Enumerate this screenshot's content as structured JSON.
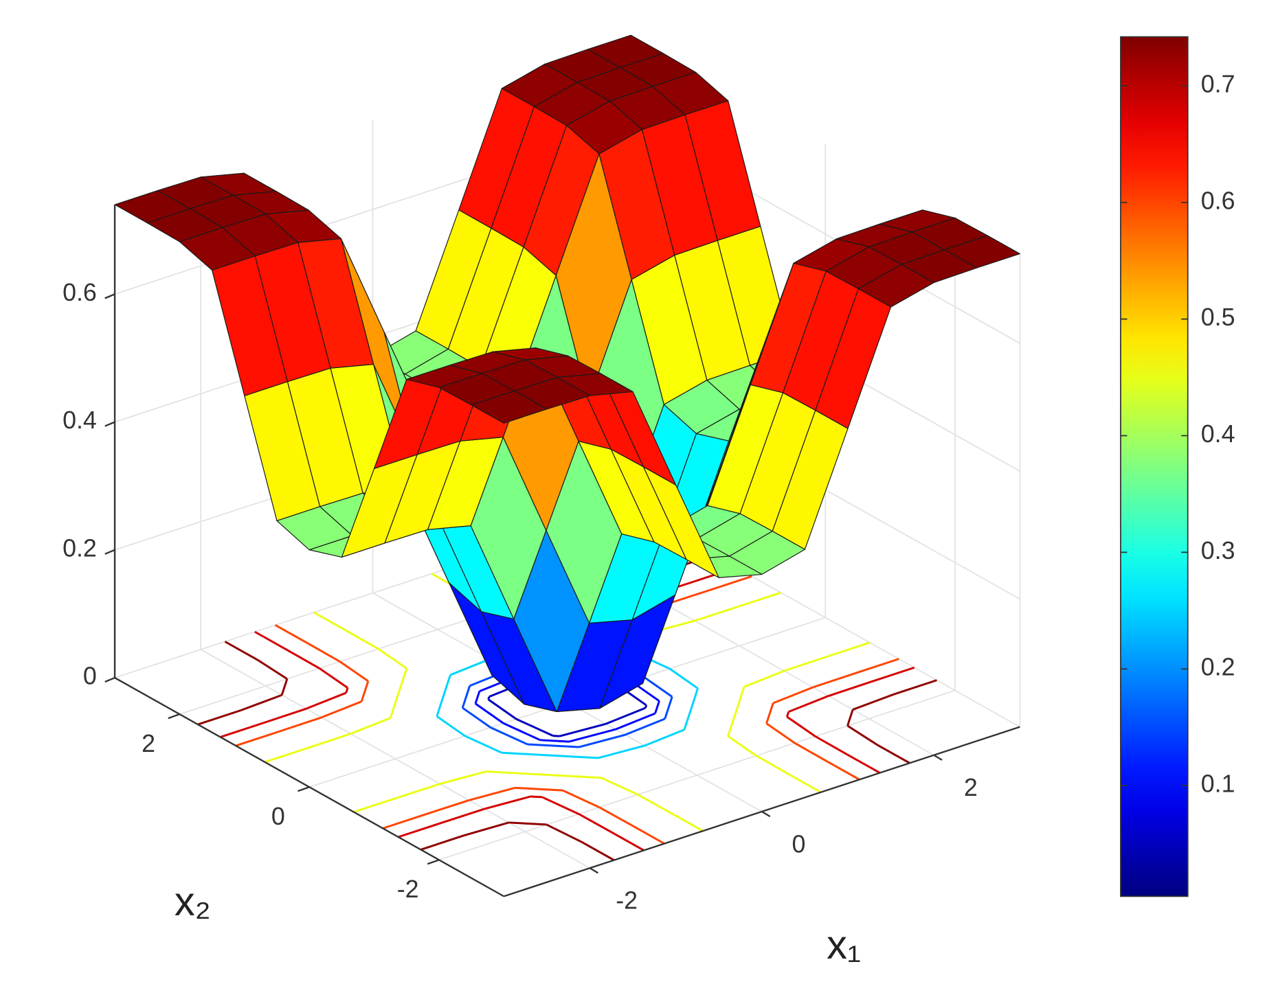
{
  "chart_data": {
    "type": "surface",
    "x": [
      -3,
      -2.5,
      -2,
      -1.5,
      -1,
      -0.5,
      0,
      0.5,
      1,
      1.5,
      2,
      2.5,
      3
    ],
    "y": [
      -3,
      -2.5,
      -2,
      -1.5,
      -1,
      -0.5,
      0,
      0.5,
      1,
      1.5,
      2,
      2.5,
      3
    ],
    "z": [
      [
        0.74,
        0.74,
        0.739,
        0.723,
        0.555,
        0.388,
        0.371,
        0.388,
        0.555,
        0.723,
        0.739,
        0.74,
        0.74
      ],
      [
        0.74,
        0.74,
        0.739,
        0.723,
        0.555,
        0.388,
        0.371,
        0.388,
        0.555,
        0.723,
        0.739,
        0.74,
        0.74
      ],
      [
        0.739,
        0.739,
        0.738,
        0.722,
        0.554,
        0.387,
        0.37,
        0.387,
        0.554,
        0.722,
        0.738,
        0.739,
        0.739
      ],
      [
        0.723,
        0.723,
        0.722,
        0.706,
        0.538,
        0.371,
        0.354,
        0.371,
        0.538,
        0.706,
        0.722,
        0.723,
        0.723
      ],
      [
        0.555,
        0.555,
        0.554,
        0.538,
        0.37,
        0.203,
        0.186,
        0.203,
        0.37,
        0.538,
        0.554,
        0.555,
        0.555
      ],
      [
        0.388,
        0.388,
        0.387,
        0.371,
        0.203,
        0.036,
        0.019,
        0.036,
        0.203,
        0.371,
        0.387,
        0.388,
        0.388
      ],
      [
        0.371,
        0.371,
        0.37,
        0.354,
        0.186,
        0.019,
        0.002,
        0.019,
        0.186,
        0.354,
        0.37,
        0.371,
        0.371
      ],
      [
        0.388,
        0.388,
        0.387,
        0.371,
        0.203,
        0.036,
        0.019,
        0.036,
        0.203,
        0.371,
        0.387,
        0.388,
        0.388
      ],
      [
        0.555,
        0.555,
        0.554,
        0.538,
        0.37,
        0.203,
        0.186,
        0.203,
        0.37,
        0.538,
        0.554,
        0.555,
        0.555
      ],
      [
        0.723,
        0.723,
        0.722,
        0.706,
        0.538,
        0.371,
        0.354,
        0.371,
        0.538,
        0.706,
        0.722,
        0.723,
        0.723
      ],
      [
        0.739,
        0.739,
        0.738,
        0.722,
        0.554,
        0.387,
        0.37,
        0.387,
        0.554,
        0.722,
        0.738,
        0.739,
        0.739
      ],
      [
        0.74,
        0.74,
        0.739,
        0.723,
        0.555,
        0.388,
        0.371,
        0.388,
        0.555,
        0.723,
        0.739,
        0.74,
        0.74
      ],
      [
        0.74,
        0.74,
        0.739,
        0.723,
        0.555,
        0.388,
        0.371,
        0.388,
        0.555,
        0.723,
        0.739,
        0.74,
        0.74
      ]
    ],
    "xlabel": "x₁",
    "ylabel": "x₂",
    "xlim": [
      -3,
      3
    ],
    "ylim": [
      -3,
      3
    ],
    "zlim": [
      0,
      0.74
    ],
    "xticks": [
      -2,
      0,
      2
    ],
    "yticks": [
      -2,
      0,
      2
    ],
    "zticks": [
      0,
      0.2,
      0.4,
      0.6
    ],
    "colormap": "jet",
    "clim": [
      0.005,
      0.742
    ],
    "colorbar_ticks": [
      0.1,
      0.2,
      0.3,
      0.4,
      0.5,
      0.6,
      0.7
    ],
    "contour_levels": [
      0.05,
      0.1,
      0.15,
      0.25,
      0.45,
      0.6,
      0.68,
      0.73
    ],
    "grid": true
  }
}
